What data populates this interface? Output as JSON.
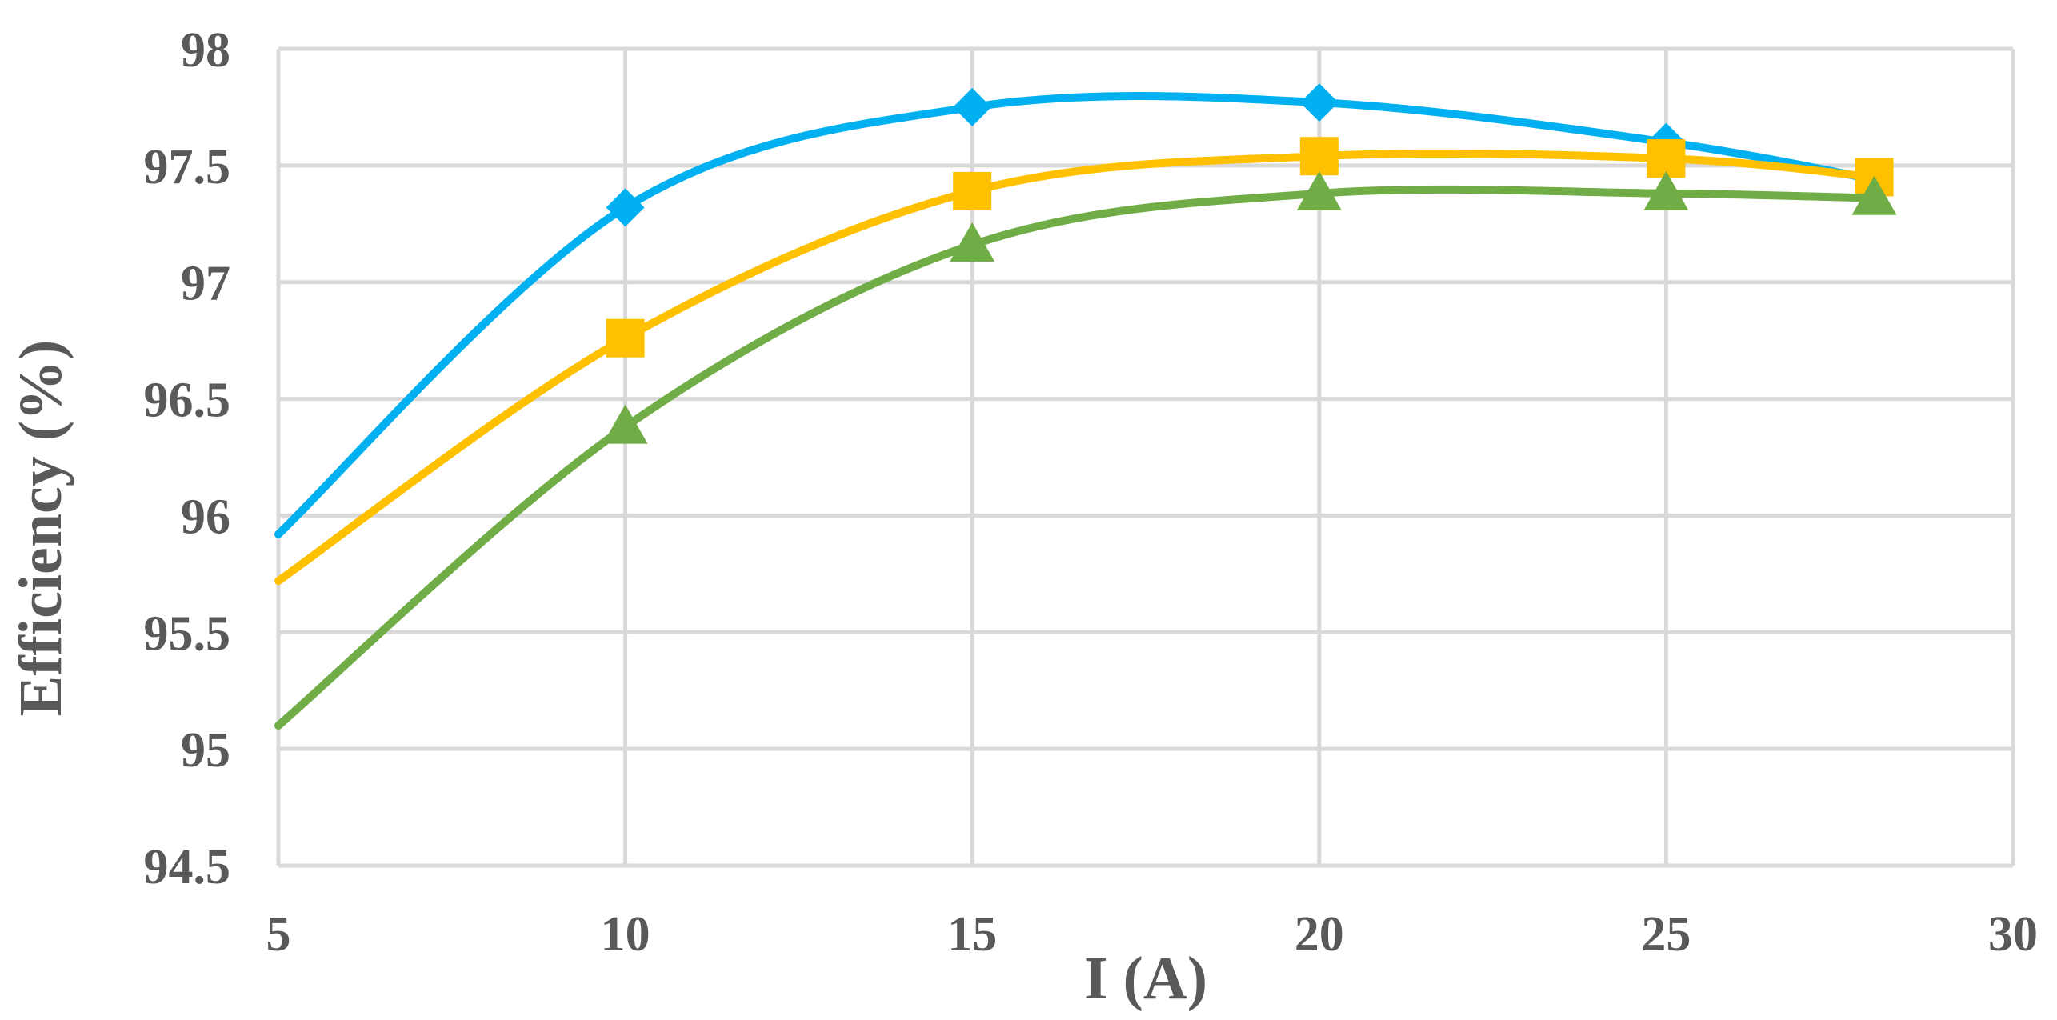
{
  "chart_data": {
    "type": "line",
    "title": "",
    "xlabel": "I (A)",
    "ylabel": "Efficiency (%)",
    "xlim": [
      5,
      30
    ],
    "ylim": [
      94.5,
      98
    ],
    "xticks": [
      5,
      10,
      15,
      20,
      25,
      30
    ],
    "yticks": [
      94.5,
      95,
      95.5,
      96,
      96.5,
      97,
      97.5,
      98
    ],
    "xtick_labels": [
      "5",
      "10",
      "15",
      "20",
      "25",
      "30"
    ],
    "ytick_labels": [
      "94.5",
      "95",
      "95.5",
      "96",
      "96.5",
      "97",
      "97.5",
      "98"
    ],
    "grid": true,
    "smooth": true,
    "legend": "none",
    "series": [
      {
        "color": "#00b0f0",
        "marker": "diamond",
        "x": [
          5,
          10,
          15,
          20,
          25,
          28
        ],
        "y": [
          95.92,
          97.32,
          97.75,
          97.77,
          97.6,
          97.44
        ]
      },
      {
        "color": "#ffc000",
        "marker": "square",
        "x": [
          5,
          10,
          15,
          20,
          25,
          28
        ],
        "y": [
          95.72,
          96.76,
          97.39,
          97.54,
          97.53,
          97.45
        ]
      },
      {
        "color": "#70ad47",
        "marker": "triangle",
        "x": [
          5,
          10,
          15,
          20,
          25,
          28
        ],
        "y": [
          95.1,
          96.38,
          97.16,
          97.38,
          97.38,
          97.36
        ]
      }
    ]
  }
}
